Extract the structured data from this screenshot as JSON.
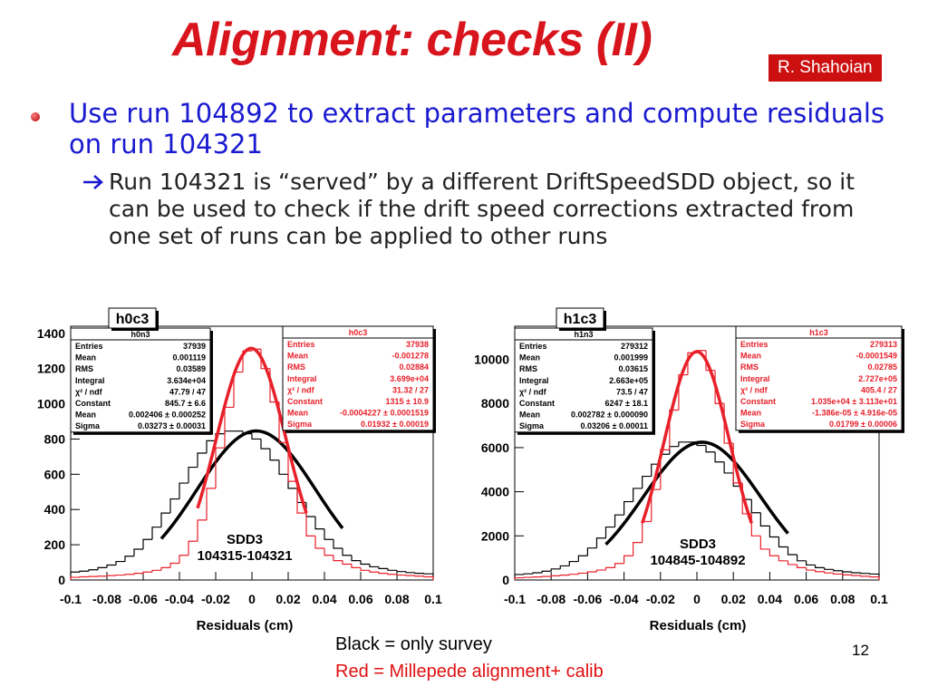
{
  "title": "Alignment: checks (II)",
  "author": "R. Shahoian",
  "bullet": "Use run 104892 to extract parameters and compute residuals on run 104321",
  "sub_bullet": "Run 104321 is “served” by a different DriftSpeedSDD object, so it can be used to check if the drift speed corrections extracted from one set of runs can be applied to other runs",
  "notes": [
    "Black = only survey",
    "Red = Millepede alignment+ calib"
  ],
  "page_number": "12",
  "chart_data": [
    {
      "type": "histogram",
      "title": "h0c3",
      "xlabel": "Residuals (cm)",
      "annotation": [
        "SDD3",
        "104315-104321"
      ],
      "bins": [
        -0.1,
        -0.095,
        -0.09,
        -0.085,
        -0.08,
        -0.075,
        -0.07,
        -0.065,
        -0.06,
        -0.055,
        -0.05,
        -0.045,
        -0.04,
        -0.035,
        -0.03,
        -0.025,
        -0.02,
        -0.015,
        -0.01,
        -0.005,
        0,
        0.005,
        0.01,
        0.015,
        0.02,
        0.025,
        0.03,
        0.035,
        0.04,
        0.045,
        0.05,
        0.055,
        0.06,
        0.065,
        0.07,
        0.075,
        0.08,
        0.085,
        0.09,
        0.095,
        0.1
      ],
      "xlim": [
        -0.1,
        0.1
      ],
      "xticks": [
        -0.1,
        -0.08,
        -0.06,
        -0.04,
        -0.02,
        0,
        0.02,
        0.04,
        0.06,
        0.08,
        0.1
      ],
      "ylim": [
        0,
        1440
      ],
      "yticks": [
        0,
        200,
        400,
        600,
        800,
        1000,
        1200,
        1400
      ],
      "series": [
        {
          "name": "h0n3",
          "color": "#000000",
          "values": [
            45,
            50,
            58,
            70,
            85,
            105,
            135,
            175,
            230,
            300,
            380,
            460,
            550,
            640,
            720,
            790,
            830,
            845,
            845,
            830,
            800,
            745,
            680,
            600,
            520,
            440,
            360,
            290,
            230,
            180,
            140,
            110,
            90,
            75,
            65,
            55,
            48,
            42,
            38,
            35
          ],
          "fit": {
            "constant": 845.7,
            "mean": 0.002406,
            "sigma": 0.03273,
            "range": [
              -0.05,
              0.05
            ]
          },
          "stats": [
            [
              "Entries",
              "37939"
            ],
            [
              "Mean",
              "0.001119"
            ],
            [
              "RMS",
              "0.03589"
            ],
            [
              "Integral",
              "3.634e+04"
            ],
            [
              "χ² / ndf",
              "47.79 / 47"
            ],
            [
              "Constant",
              "845.7 ± 6.6"
            ],
            [
              "Mean",
              "0.002406 ± 0.000252"
            ],
            [
              "Sigma",
              "0.03273 ± 0.00031"
            ]
          ]
        },
        {
          "name": "h0c3",
          "color": "#e8202a",
          "values": [
            15,
            18,
            20,
            22,
            25,
            28,
            32,
            38,
            45,
            55,
            70,
            95,
            140,
            220,
            340,
            520,
            750,
            980,
            1180,
            1300,
            1310,
            1200,
            1010,
            780,
            560,
            380,
            250,
            180,
            140,
            110,
            90,
            70,
            55,
            45,
            38,
            32,
            28,
            25,
            22,
            18
          ],
          "fit": {
            "constant": 1315,
            "mean": -0.0004227,
            "sigma": 0.01932,
            "range": [
              -0.03,
              0.03
            ]
          },
          "stats": [
            [
              "Entries",
              "37938"
            ],
            [
              "Mean",
              "-0.001278"
            ],
            [
              "RMS",
              "0.02884"
            ],
            [
              "Integral",
              "3.699e+04"
            ],
            [
              "χ² / ndf",
              "31.32 / 27"
            ],
            [
              "Constant",
              "1315 ± 10.9"
            ],
            [
              "Mean",
              "-0.0004227 ± 0.0001519"
            ],
            [
              "Sigma",
              "0.01932 ± 0.00019"
            ]
          ]
        }
      ]
    },
    {
      "type": "histogram",
      "title": "h1c3",
      "xlabel": "Residuals (cm)",
      "annotation": [
        "SDD3",
        "104845-104892"
      ],
      "bins": [
        -0.1,
        -0.095,
        -0.09,
        -0.085,
        -0.08,
        -0.075,
        -0.07,
        -0.065,
        -0.06,
        -0.055,
        -0.05,
        -0.045,
        -0.04,
        -0.035,
        -0.03,
        -0.025,
        -0.02,
        -0.015,
        -0.01,
        -0.005,
        0,
        0.005,
        0.01,
        0.015,
        0.02,
        0.025,
        0.03,
        0.035,
        0.04,
        0.045,
        0.05,
        0.055,
        0.06,
        0.065,
        0.07,
        0.075,
        0.08,
        0.085,
        0.09,
        0.095,
        0.1
      ],
      "xlim": [
        -0.1,
        0.1
      ],
      "xticks": [
        -0.1,
        -0.08,
        -0.06,
        -0.04,
        -0.02,
        0,
        0.02,
        0.04,
        0.06,
        0.08,
        0.1
      ],
      "ylim": [
        0,
        11500
      ],
      "yticks": [
        0,
        2000,
        4000,
        6000,
        8000,
        10000
      ],
      "series": [
        {
          "name": "h1n3",
          "color": "#000000",
          "values": [
            250,
            280,
            330,
            400,
            500,
            640,
            840,
            1100,
            1450,
            1900,
            2400,
            2950,
            3550,
            4150,
            4700,
            5250,
            5700,
            6050,
            6250,
            6250,
            6100,
            5800,
            5350,
            4850,
            4250,
            3650,
            3050,
            2450,
            1950,
            1500,
            1150,
            870,
            680,
            560,
            480,
            420,
            370,
            330,
            300,
            270
          ],
          "fit": {
            "constant": 6247,
            "mean": 0.002782,
            "sigma": 0.03206,
            "range": [
              -0.05,
              0.05
            ]
          },
          "stats": [
            [
              "Entries",
              "279312"
            ],
            [
              "Mean",
              "0.001999"
            ],
            [
              "RMS",
              "0.03615"
            ],
            [
              "Integral",
              "2.663e+05"
            ],
            [
              "χ² / ndf",
              "73.5 / 47"
            ],
            [
              "Constant",
              "6247 ± 18.1"
            ],
            [
              "Mean",
              "0.002782 ± 0.000090"
            ],
            [
              "Sigma",
              "0.03206 ± 0.00011"
            ]
          ]
        },
        {
          "name": "h1c3",
          "color": "#e8202a",
          "values": [
            100,
            120,
            140,
            160,
            190,
            220,
            260,
            310,
            370,
            450,
            560,
            750,
            1100,
            1700,
            2650,
            4100,
            5900,
            7700,
            9300,
            10300,
            10400,
            9500,
            8000,
            6200,
            4400,
            3000,
            2000,
            1400,
            1100,
            870,
            700,
            560,
            450,
            380,
            320,
            270,
            230,
            200,
            170,
            140
          ],
          "fit": {
            "constant": 10350,
            "mean": -1.386e-05,
            "sigma": 0.01799,
            "range": [
              -0.03,
              0.03
            ]
          },
          "stats": [
            [
              "Entries",
              "279313"
            ],
            [
              "Mean",
              "-0.0001549"
            ],
            [
              "RMS",
              "0.02785"
            ],
            [
              "Integral",
              "2.727e+05"
            ],
            [
              "χ² / ndf",
              "405.4 / 27"
            ],
            [
              "Constant",
              "1.035e+04 ± 3.113e+01"
            ],
            [
              "Mean",
              "-1.386e-05 ± 4.916e-05"
            ],
            [
              "Sigma",
              "0.01799 ± 0.00006"
            ]
          ]
        }
      ]
    }
  ]
}
